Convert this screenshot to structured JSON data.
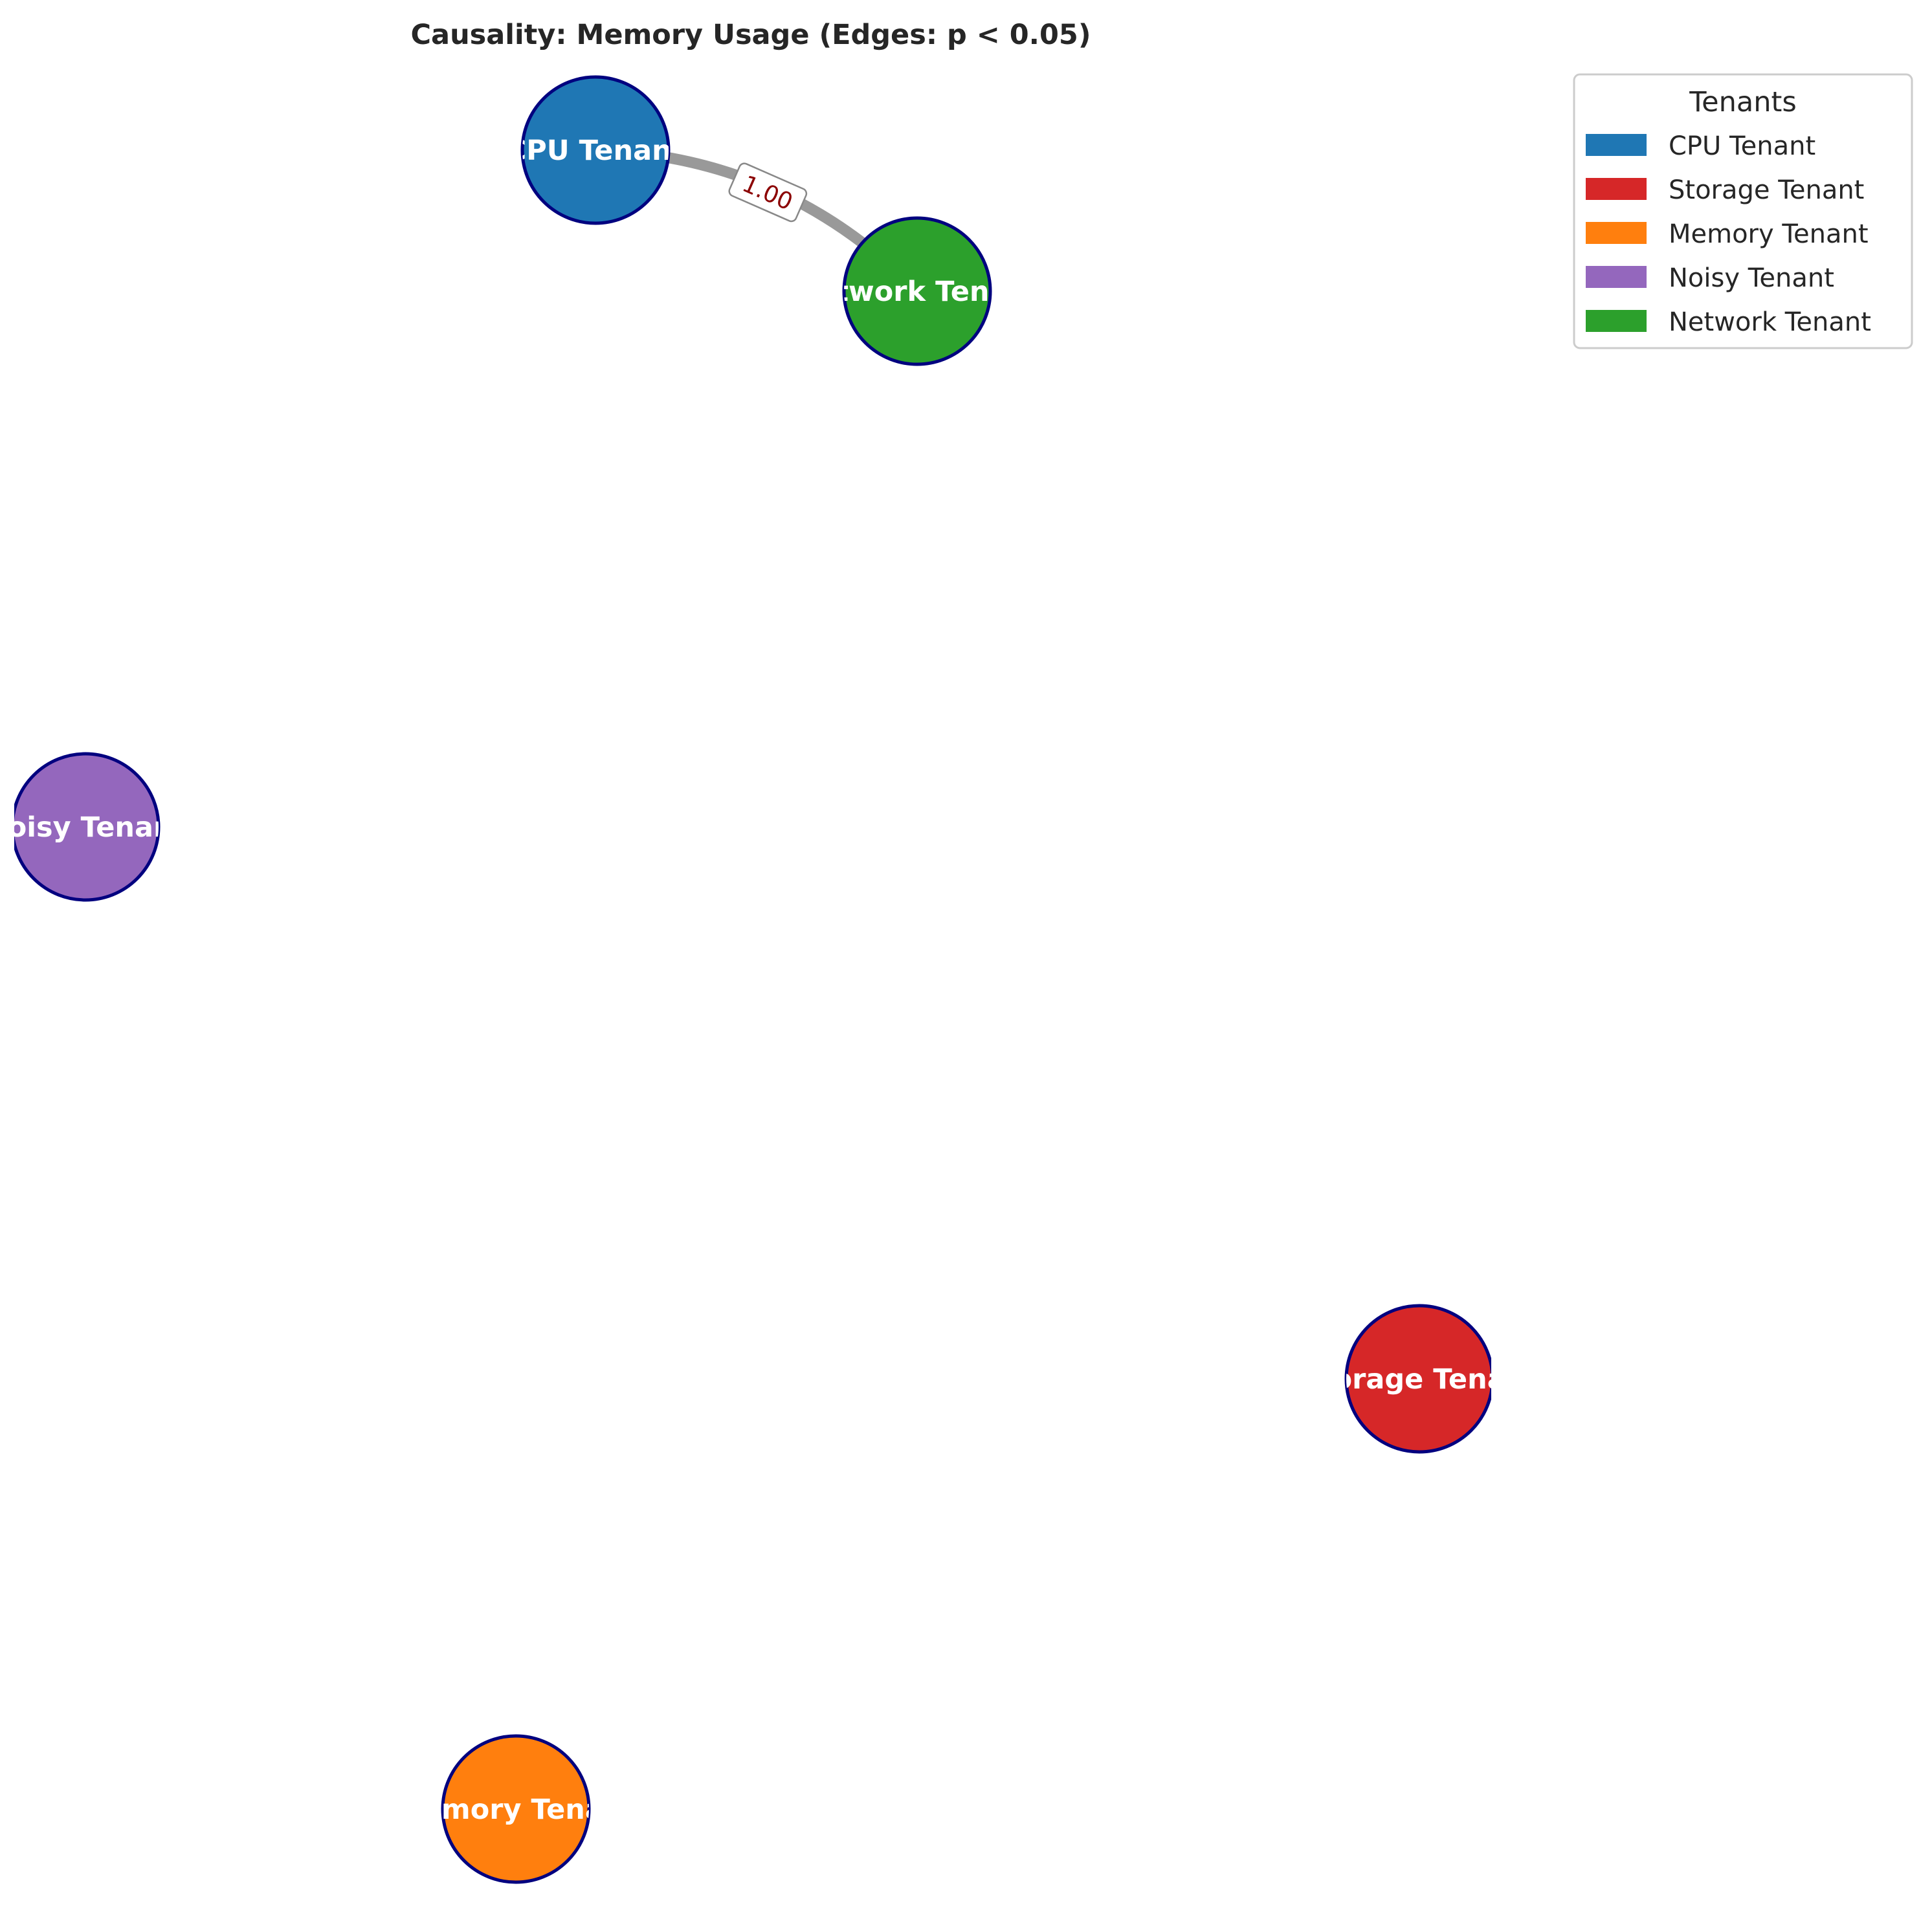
{
  "title": "Causality: Memory Usage (Edges: p < 0.05)",
  "nodes": [
    {
      "id": "cpu",
      "label": "CPU Tenant",
      "color": "#1f77b4"
    },
    {
      "id": "network",
      "label": "Network Tenant",
      "color": "#2ca02c"
    },
    {
      "id": "noisy",
      "label": "Noisy Tenant",
      "color": "#9467bd"
    },
    {
      "id": "storage",
      "label": "Storage Tenant",
      "color": "#d62728"
    },
    {
      "id": "memory",
      "label": "Memory Tenant",
      "color": "#ff7f0e"
    }
  ],
  "edges": [
    {
      "source": "cpu",
      "target": "network",
      "weight_label": "1.00"
    }
  ],
  "legend": {
    "title": "Tenants",
    "items": [
      {
        "label": "CPU Tenant",
        "color": "#1f77b4"
      },
      {
        "label": "Storage Tenant",
        "color": "#d62728"
      },
      {
        "label": "Memory Tenant",
        "color": "#ff7f0e"
      },
      {
        "label": "Noisy Tenant",
        "color": "#9467bd"
      },
      {
        "label": "Network Tenant",
        "color": "#2ca02c"
      }
    ]
  }
}
